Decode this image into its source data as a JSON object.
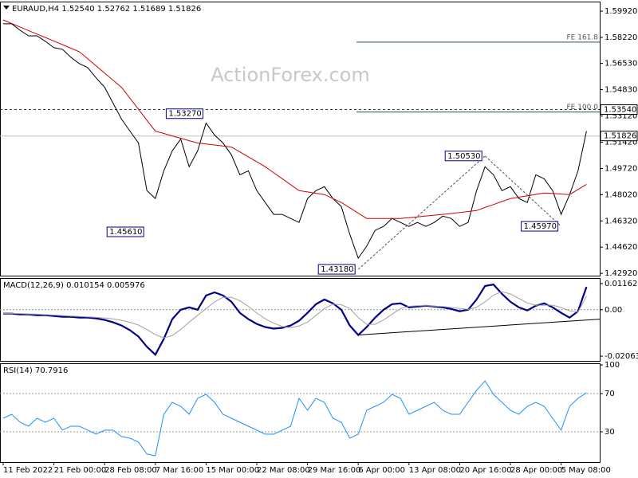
{
  "chart_data": [
    {
      "type": "line",
      "title": "EURAUD,H4  1.52540 1.52762 1.51689 1.51826",
      "watermark": "ActionForex.com",
      "ylim": [
        1.4277,
        1.6054
      ],
      "yticks": [
        {
          "value": 1.5992,
          "label": "1.59920"
        },
        {
          "value": 1.5822,
          "label": "1.58220"
        },
        {
          "value": 1.5653,
          "label": "1.56530"
        },
        {
          "value": 1.5483,
          "label": "1.54830"
        },
        {
          "value": 1.5312,
          "label": "1.53120"
        },
        {
          "value": 1.5142,
          "label": "1.51420"
        },
        {
          "value": 1.4972,
          "label": "1.49720"
        },
        {
          "value": 1.4802,
          "label": "1.48020"
        },
        {
          "value": 1.4632,
          "label": "1.46320"
        },
        {
          "value": 1.4462,
          "label": "1.44620"
        },
        {
          "value": 1.4292,
          "label": "1.42920"
        }
      ],
      "series": [
        {
          "color": "#000000",
          "values": [
            1.591,
            1.591,
            1.5868,
            1.5832,
            1.5832,
            1.5796,
            1.5755,
            1.5745,
            1.5693,
            1.5652,
            1.5626,
            1.5559,
            1.5498,
            1.5395,
            1.5292,
            1.5214,
            1.5137,
            1.4828,
            1.4777,
            1.4957,
            1.5086,
            1.5163,
            1.4983,
            1.5086,
            1.5266,
            1.5189,
            1.5137,
            1.506,
            1.4931,
            1.4957,
            1.4828,
            1.4751,
            1.4674,
            1.4674,
            1.4648,
            1.4622,
            1.4777,
            1.4828,
            1.4854,
            1.4777,
            1.4725,
            1.4545,
            1.439,
            1.4468,
            1.4571,
            1.4596,
            1.4648,
            1.4622,
            1.4596,
            1.4622,
            1.4596,
            1.4622,
            1.4663,
            1.4648,
            1.4596,
            1.4622,
            1.4828,
            1.4983,
            1.4931,
            1.4828,
            1.4854,
            1.4777,
            1.4751,
            1.4931,
            1.4905,
            1.4828,
            1.4674,
            1.4802,
            1.4957,
            1.5214
          ]
        },
        {
          "color": "#d00000",
          "values": [
            1.5935,
            1.5912,
            1.5889,
            1.5866,
            1.5843,
            1.5821,
            1.5798,
            1.5775,
            1.5752,
            1.5729,
            1.5683,
            1.5637,
            1.559,
            1.5544,
            1.5498,
            1.5427,
            1.5356,
            1.5285,
            1.5214,
            1.5199,
            1.5183,
            1.5168,
            1.5152,
            1.5137,
            1.5131,
            1.5124,
            1.5118,
            1.5111,
            1.5079,
            1.5047,
            1.5015,
            1.4983,
            1.4944,
            1.4906,
            1.4867,
            1.4828,
            1.482,
            1.4811,
            1.4803,
            1.4777,
            1.4751,
            1.4717,
            1.4682,
            1.4648,
            1.4648,
            1.4648,
            1.4648,
            1.4648,
            1.4653,
            1.4658,
            1.4664,
            1.4669,
            1.4674,
            1.468,
            1.4686,
            1.4693,
            1.4699,
            1.4719,
            1.4738,
            1.4758,
            1.4777,
            1.4786,
            1.4795,
            1.4804,
            1.4813,
            1.481,
            1.4806,
            1.4803,
            1.4836,
            1.4869
          ]
        }
      ],
      "levels": [
        {
          "label": "FE 161.8",
          "value": 1.5791
        },
        {
          "label": "FE 100.0",
          "value": 1.5338
        }
      ],
      "alert_level": {
        "value": 1.5354,
        "label": "1.53540"
      },
      "last_price": 1.51826,
      "annotations": [
        {
          "x": 24,
          "value": 1.5327,
          "label": "1.53270"
        },
        {
          "x": 17,
          "value": 1.4561,
          "label": "1.45610"
        },
        {
          "x": 42,
          "value": 1.4318,
          "label": "1.43180"
        },
        {
          "x": 57,
          "value": 1.5053,
          "label": "1.50530"
        },
        {
          "x": 66,
          "value": 1.4597,
          "label": "1.45970"
        }
      ]
    },
    {
      "type": "line",
      "title": "MACD(12,26,9) 0.010154 0.005976",
      "ylim": [
        -0.02274,
        0.01407
      ],
      "yticks": [
        0.01162,
        {
          "value": 0,
          "label": "0.00"
        },
        -0.020633
      ],
      "zero_line": true,
      "series": [
        {
          "color": "#00008b",
          "values": [
            -0.00175,
            -0.00175,
            -0.0021,
            -0.0021,
            -0.00245,
            -0.00245,
            -0.0028,
            -0.00316,
            -0.00316,
            -0.00351,
            -0.00351,
            -0.00386,
            -0.00456,
            -0.00561,
            -0.00701,
            -0.00912,
            -0.01192,
            -0.01648,
            -0.01999,
            -0.01297,
            -0.00421,
            0,
            0.00105,
            0,
            0.00631,
            0.00771,
            0.00631,
            0.00351,
            -0.0014,
            -0.00421,
            -0.00631,
            -0.00771,
            -0.00841,
            -0.00806,
            -0.00701,
            -0.00491,
            -0.0014,
            0.00245,
            0.00456,
            0.0028,
            0,
            -0.00701,
            -0.01122,
            -0.00771,
            -0.00351,
            0,
            0.00245,
            0.0028,
            0.00105,
            0.0014,
            0.00175,
            0.0014,
            0.00105,
            0.00035,
            -0.0007,
            0,
            0.00456,
            0.01052,
            0.01122,
            0.00701,
            0.00351,
            0.00105,
            -0.00035,
            0.00175,
            0.0028,
            0.00105,
            -0.0014,
            -0.00351,
            -0.0007,
            0.01015
          ]
        },
        {
          "color": "#a0a0a0",
          "values": [
            -0.0017,
            -0.0017,
            -0.0017,
            -0.0019,
            -0.002,
            -0.0022,
            -0.0024,
            -0.0026,
            -0.0028,
            -0.003,
            -0.0032,
            -0.0034,
            -0.0037,
            -0.0041,
            -0.0047,
            -0.0056,
            -0.0068,
            -0.0088,
            -0.0111,
            -0.0125,
            -0.0115,
            -0.0088,
            -0.0055,
            -0.0025,
            0.0005,
            0.0035,
            0.0055,
            0.0055,
            0.004,
            0.0015,
            -0.0015,
            -0.004,
            -0.006,
            -0.0075,
            -0.008,
            -0.0072,
            -0.0055,
            -0.0025,
            0.0005,
            0.0025,
            0.0022,
            0.0005,
            -0.0035,
            -0.0065,
            -0.0065,
            -0.0045,
            -0.002,
            0.0005,
            0.0015,
            0.0018,
            0.0018,
            0.0016,
            0.0014,
            0.001,
            0.0005,
            0.0002,
            0.001,
            0.0035,
            0.0065,
            0.008,
            0.007,
            0.005,
            0.003,
            0.002,
            0.002,
            0.002,
            0.001,
            -0.0005,
            -0.001,
            0.005976
          ]
        }
      ],
      "trendline": {
        "x": [
          42,
          70.57
        ],
        "values": [
          -0.01122,
          -0.00421
        ]
      }
    },
    {
      "type": "line",
      "title": "RSI(14) 70.7916",
      "ylim": [
        -1.7,
        101.7
      ],
      "yticks": [
        100,
        70,
        30
      ],
      "levels": [
        70,
        30
      ],
      "categories": [
        "11 Feb 2022",
        null,
        null,
        null,
        null,
        null,
        "21 Feb 00:00",
        null,
        null,
        null,
        null,
        null,
        "28 Feb 08:00",
        null,
        null,
        null,
        null,
        null,
        "7 Mar 16:00",
        null,
        null,
        null,
        null,
        null,
        "15 Mar 00:00",
        null,
        null,
        null,
        null,
        null,
        "22 Mar 08:00",
        null,
        null,
        null,
        null,
        null,
        "29 Mar 16:00",
        null,
        null,
        null,
        null,
        null,
        "6 Apr 00:00",
        null,
        null,
        null,
        null,
        null,
        "13 Apr 08:00",
        null,
        null,
        null,
        null,
        null,
        "20 Apr 16:00",
        null,
        null,
        null,
        null,
        null,
        "28 Apr 00:00",
        null,
        null,
        null,
        null,
        null,
        "5 May 08:00",
        null,
        null,
        null
      ],
      "series": [
        {
          "color": "#1e90ff",
          "values": [
            44.2,
            48.3,
            40,
            35.8,
            44.2,
            40,
            44.2,
            31.7,
            35.8,
            35.8,
            31.7,
            27.5,
            31.7,
            31.7,
            25,
            23.3,
            19.2,
            6.7,
            5,
            48.3,
            60.8,
            56.7,
            48.3,
            65,
            69.2,
            60.8,
            48.3,
            44.2,
            40,
            35.8,
            31.7,
            27.5,
            27.5,
            31.7,
            35.8,
            65,
            52.5,
            65,
            60.8,
            44.2,
            40,
            23.3,
            27.5,
            52.5,
            56.7,
            60.8,
            69.2,
            65,
            48.3,
            52.5,
            56.7,
            60.8,
            52.5,
            48.3,
            48.3,
            60.8,
            73.3,
            83.3,
            69.2,
            60.8,
            52.5,
            48.3,
            56.7,
            60.8,
            56.7,
            44.2,
            31.7,
            56.7,
            65,
            70.8
          ]
        }
      ]
    }
  ]
}
